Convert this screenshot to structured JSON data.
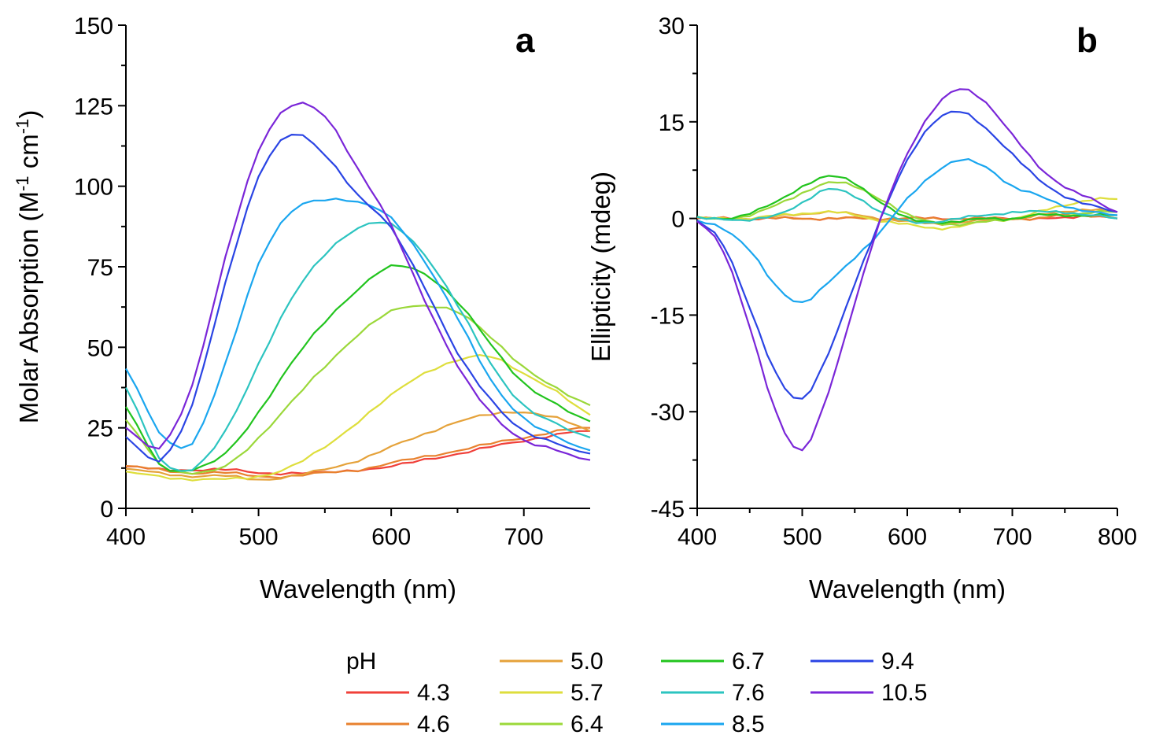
{
  "legend": {
    "title": "pH",
    "entries": [
      {
        "label": "4.3",
        "color": "#f0403a"
      },
      {
        "label": "4.6",
        "color": "#e8812e"
      },
      {
        "label": "5.0",
        "color": "#e5a23a"
      },
      {
        "label": "5.7",
        "color": "#dede3c"
      },
      {
        "label": "6.4",
        "color": "#9bd83a"
      },
      {
        "label": "6.7",
        "color": "#22c41e"
      },
      {
        "label": "7.6",
        "color": "#2cc4c0"
      },
      {
        "label": "8.5",
        "color": "#1aa6ef"
      },
      {
        "label": "9.4",
        "color": "#2a44e4"
      },
      {
        "label": "10.5",
        "color": "#7a26d8"
      }
    ]
  },
  "chart_data": [
    {
      "type": "line",
      "panel": "a",
      "title": "",
      "xlabel": "Wavelength (nm)",
      "ylabel": "Molar Absorption (M",
      "ylabel_sup1": "-1",
      "ylabel_mid": " cm",
      "ylabel_sup2": "-1",
      "ylabel_end": ")",
      "xlim": [
        400,
        750
      ],
      "ylim": [
        0,
        150
      ],
      "xticks": [
        "400",
        "500",
        "600",
        "700"
      ],
      "xtick_values": [
        400,
        500,
        600,
        700
      ],
      "yticks": [
        "0",
        "25",
        "50",
        "75",
        "100",
        "125",
        "150"
      ],
      "ytick_values": [
        0,
        25,
        50,
        75,
        100,
        125,
        150
      ],
      "x": [
        400,
        425,
        450,
        475,
        500,
        525,
        550,
        575,
        600,
        625,
        650,
        675,
        700,
        725,
        750
      ],
      "series": [
        {
          "name": "4.3",
          "values": [
            13,
            12,
            12,
            12,
            11,
            11,
            11,
            12,
            13,
            15,
            17,
            19,
            21,
            23,
            24
          ]
        },
        {
          "name": "4.6",
          "values": [
            13,
            12,
            11,
            11,
            10,
            10,
            11,
            12,
            14,
            16,
            18,
            20,
            22,
            24,
            25
          ]
        },
        {
          "name": "5.0",
          "values": [
            12,
            11,
            10,
            10,
            9,
            10,
            12,
            15,
            19,
            23,
            27,
            29,
            30,
            28,
            24
          ]
        },
        {
          "name": "5.7",
          "values": [
            11,
            10,
            9,
            9,
            10,
            13,
            19,
            27,
            35,
            42,
            46,
            47,
            42,
            36,
            29
          ]
        },
        {
          "name": "6.4",
          "values": [
            27,
            14,
            11,
            13,
            22,
            33,
            44,
            54,
            61,
            63,
            61,
            53,
            44,
            37,
            32
          ]
        },
        {
          "name": "6.7",
          "values": [
            31,
            14,
            12,
            17,
            30,
            45,
            58,
            68,
            75,
            73,
            64,
            51,
            39,
            32,
            27
          ]
        },
        {
          "name": "7.6",
          "values": [
            37,
            16,
            12,
            24,
            45,
            65,
            79,
            87,
            88,
            79,
            63,
            45,
            32,
            26,
            22
          ]
        },
        {
          "name": "8.5",
          "values": [
            43,
            24,
            20,
            45,
            76,
            92,
            96,
            95,
            90,
            77,
            59,
            40,
            28,
            22,
            18
          ]
        },
        {
          "name": "9.4",
          "values": [
            22,
            15,
            32,
            70,
            103,
            116,
            110,
            97,
            87,
            69,
            48,
            34,
            24,
            20,
            17
          ]
        },
        {
          "name": "10.5",
          "values": [
            25,
            19,
            38,
            78,
            111,
            125,
            122,
            105,
            88,
            65,
            44,
            30,
            21,
            18,
            15
          ]
        }
      ]
    },
    {
      "type": "line",
      "panel": "b",
      "title": "",
      "xlabel": "Wavelength (nm)",
      "ylabel": "Ellipticity (mdeg)",
      "xlim": [
        400,
        800
      ],
      "ylim": [
        -45,
        30
      ],
      "xticks": [
        "400",
        "500",
        "600",
        "700",
        "800"
      ],
      "xtick_values": [
        400,
        500,
        600,
        700,
        800
      ],
      "yticks": [
        "-45",
        "-30",
        "-15",
        "0",
        "15",
        "30"
      ],
      "ytick_values": [
        -45,
        -30,
        -15,
        0,
        15,
        30
      ],
      "x": [
        400,
        425,
        450,
        475,
        500,
        525,
        550,
        575,
        600,
        625,
        650,
        675,
        700,
        725,
        750,
        775,
        800
      ],
      "series": [
        {
          "name": "4.3",
          "values": [
            0,
            0,
            0,
            0,
            0,
            0,
            0,
            0,
            0,
            0,
            0,
            0,
            0,
            0,
            0,
            0.5,
            0
          ]
        },
        {
          "name": "4.6",
          "values": [
            0,
            0,
            0,
            0,
            0,
            0,
            0,
            0,
            0,
            0,
            0,
            0,
            0,
            0,
            0.5,
            0.5,
            0
          ]
        },
        {
          "name": "5.0",
          "values": [
            0,
            0,
            0,
            0.3,
            0.7,
            1,
            0.6,
            0,
            -0.5,
            -0.8,
            -0.6,
            -0.3,
            0,
            0.5,
            1,
            1.5,
            1
          ]
        },
        {
          "name": "5.7",
          "values": [
            0,
            0,
            0,
            0.4,
            0.8,
            1,
            0.5,
            -0.3,
            -1,
            -1.5,
            -1.2,
            -0.5,
            0,
            1,
            2,
            3,
            3
          ]
        },
        {
          "name": "6.4",
          "values": [
            0,
            0,
            0.5,
            2,
            4,
            5.5,
            5,
            3,
            0.5,
            -0.5,
            -1,
            -0.5,
            0,
            0.5,
            0.5,
            1,
            1
          ]
        },
        {
          "name": "6.7",
          "values": [
            0,
            0,
            0.8,
            2.5,
            5,
            6.5,
            5.5,
            2.5,
            0,
            -0.5,
            -0.5,
            0,
            0,
            0.5,
            0.5,
            0.5,
            0.5
          ]
        },
        {
          "name": "7.6",
          "values": [
            0,
            0,
            -0.3,
            0.5,
            2.5,
            4.5,
            3.5,
            1,
            -0.5,
            -0.5,
            0,
            0.5,
            1,
            1,
            1,
            0.5,
            0
          ]
        },
        {
          "name": "8.5",
          "values": [
            -0.5,
            -1.5,
            -5,
            -10.5,
            -13,
            -10,
            -6,
            -2,
            3,
            7,
            9,
            8,
            5,
            3.5,
            2,
            1,
            0.5
          ]
        },
        {
          "name": "9.4",
          "values": [
            -0.5,
            -4,
            -14,
            -24,
            -28,
            -21,
            -10,
            0,
            9,
            15,
            16.5,
            14,
            10,
            6,
            3.5,
            2,
            1
          ]
        },
        {
          "name": "10.5",
          "values": [
            -0.5,
            -5,
            -17,
            -30,
            -36,
            -27,
            -13,
            0,
            10,
            17,
            20,
            18,
            13,
            8,
            5,
            3,
            1
          ]
        }
      ]
    }
  ]
}
